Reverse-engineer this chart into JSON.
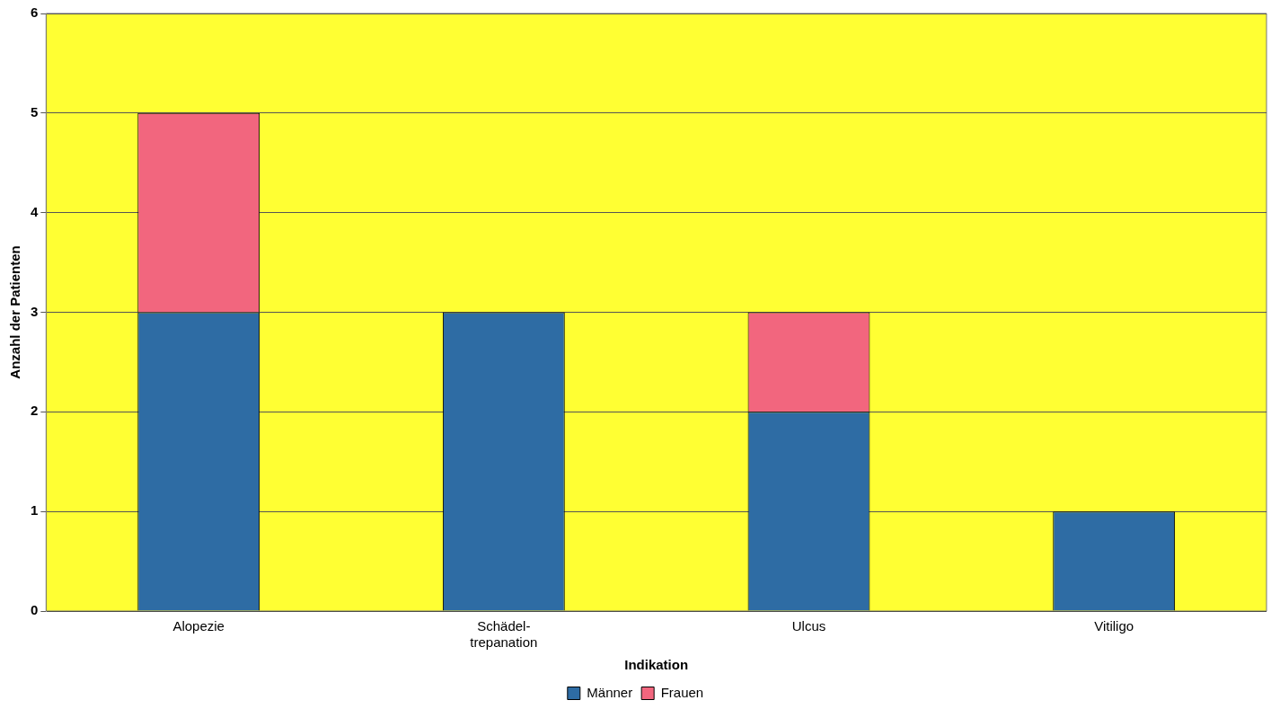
{
  "chart_data": {
    "type": "bar",
    "xlabel": "Indikation",
    "ylabel": "Anzahl der Patienten",
    "categories": [
      "Alopezie",
      "Schädel-\ntrepanation",
      "Ulcus",
      "Vitiligo"
    ],
    "series": [
      {
        "name": "Männer",
        "color": "#2e6ca4",
        "values": [
          3,
          3,
          2,
          1
        ]
      },
      {
        "name": "Frauen",
        "color": "#f2667e",
        "values": [
          2,
          0,
          1,
          0
        ]
      }
    ],
    "stacked": true,
    "ylim": [
      0,
      6
    ],
    "yticks": [
      0,
      1,
      2,
      3,
      4,
      5,
      6
    ],
    "grid": "y",
    "legend": "bottom"
  }
}
